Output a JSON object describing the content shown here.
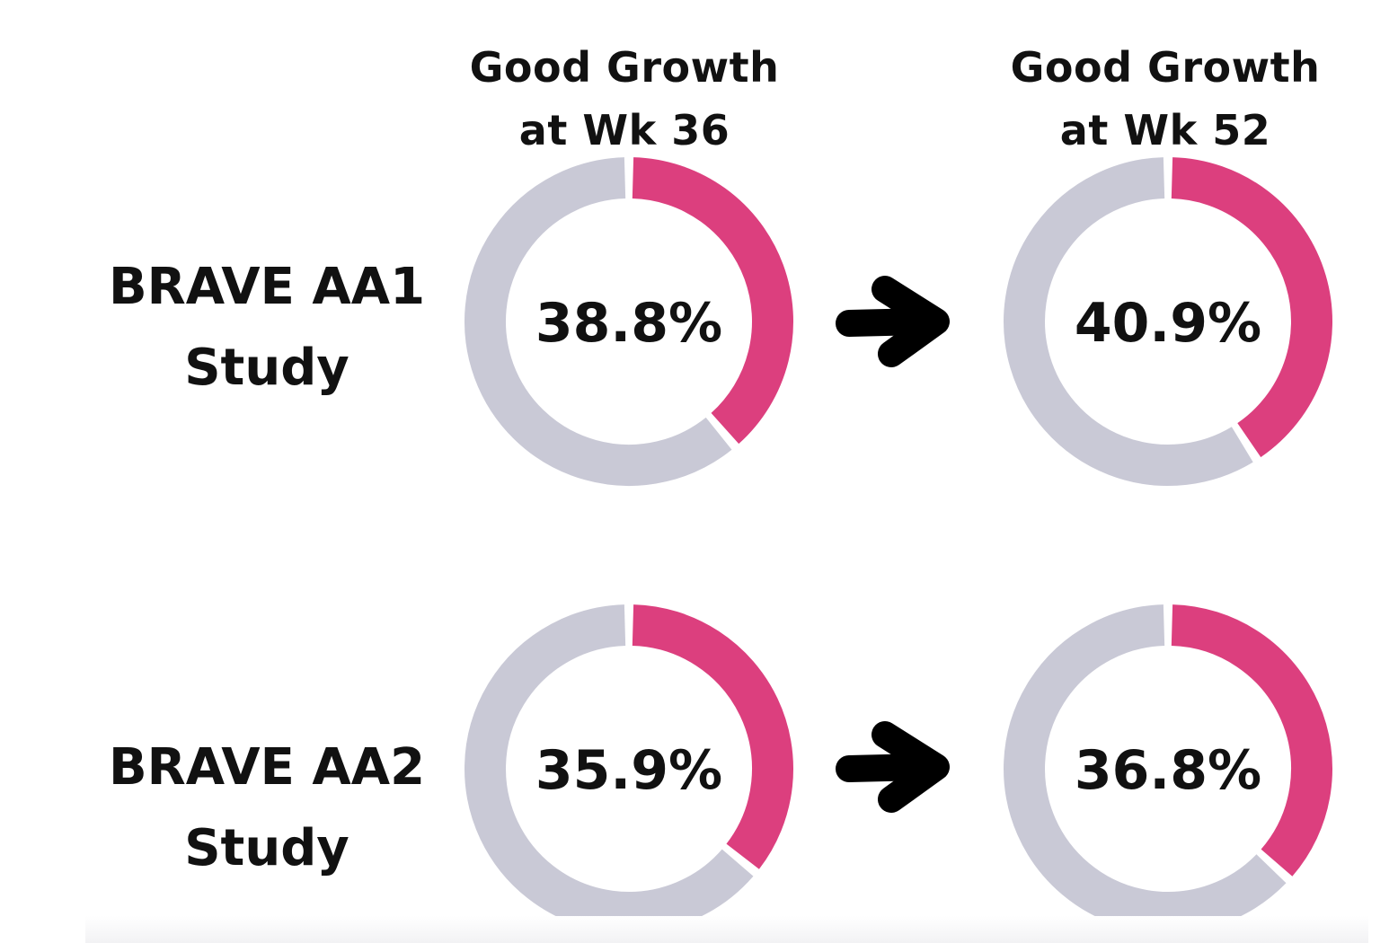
{
  "chart_data": {
    "type": "pie",
    "columns": [
      {
        "line1": "Good Growth",
        "line2": "at Wk 36"
      },
      {
        "line1": "Good Growth",
        "line2": "at Wk 52"
      }
    ],
    "rows": [
      {
        "line1": "BRAVE AA1",
        "line2": "Study",
        "values": [
          38.8,
          40.9
        ],
        "labels": [
          "38.8%",
          "40.9%"
        ]
      },
      {
        "line1": "BRAVE AA2",
        "line2": "Study",
        "values": [
          35.9,
          36.8
        ],
        "labels": [
          "35.9%",
          "36.8%"
        ]
      }
    ],
    "value_range": [
      0,
      100
    ],
    "colors": {
      "value": "#dc3f7e",
      "remainder": "#c9c9d6",
      "text": "#111111",
      "arrow": "#000000"
    },
    "icons": [
      "arrow-right-icon"
    ]
  }
}
